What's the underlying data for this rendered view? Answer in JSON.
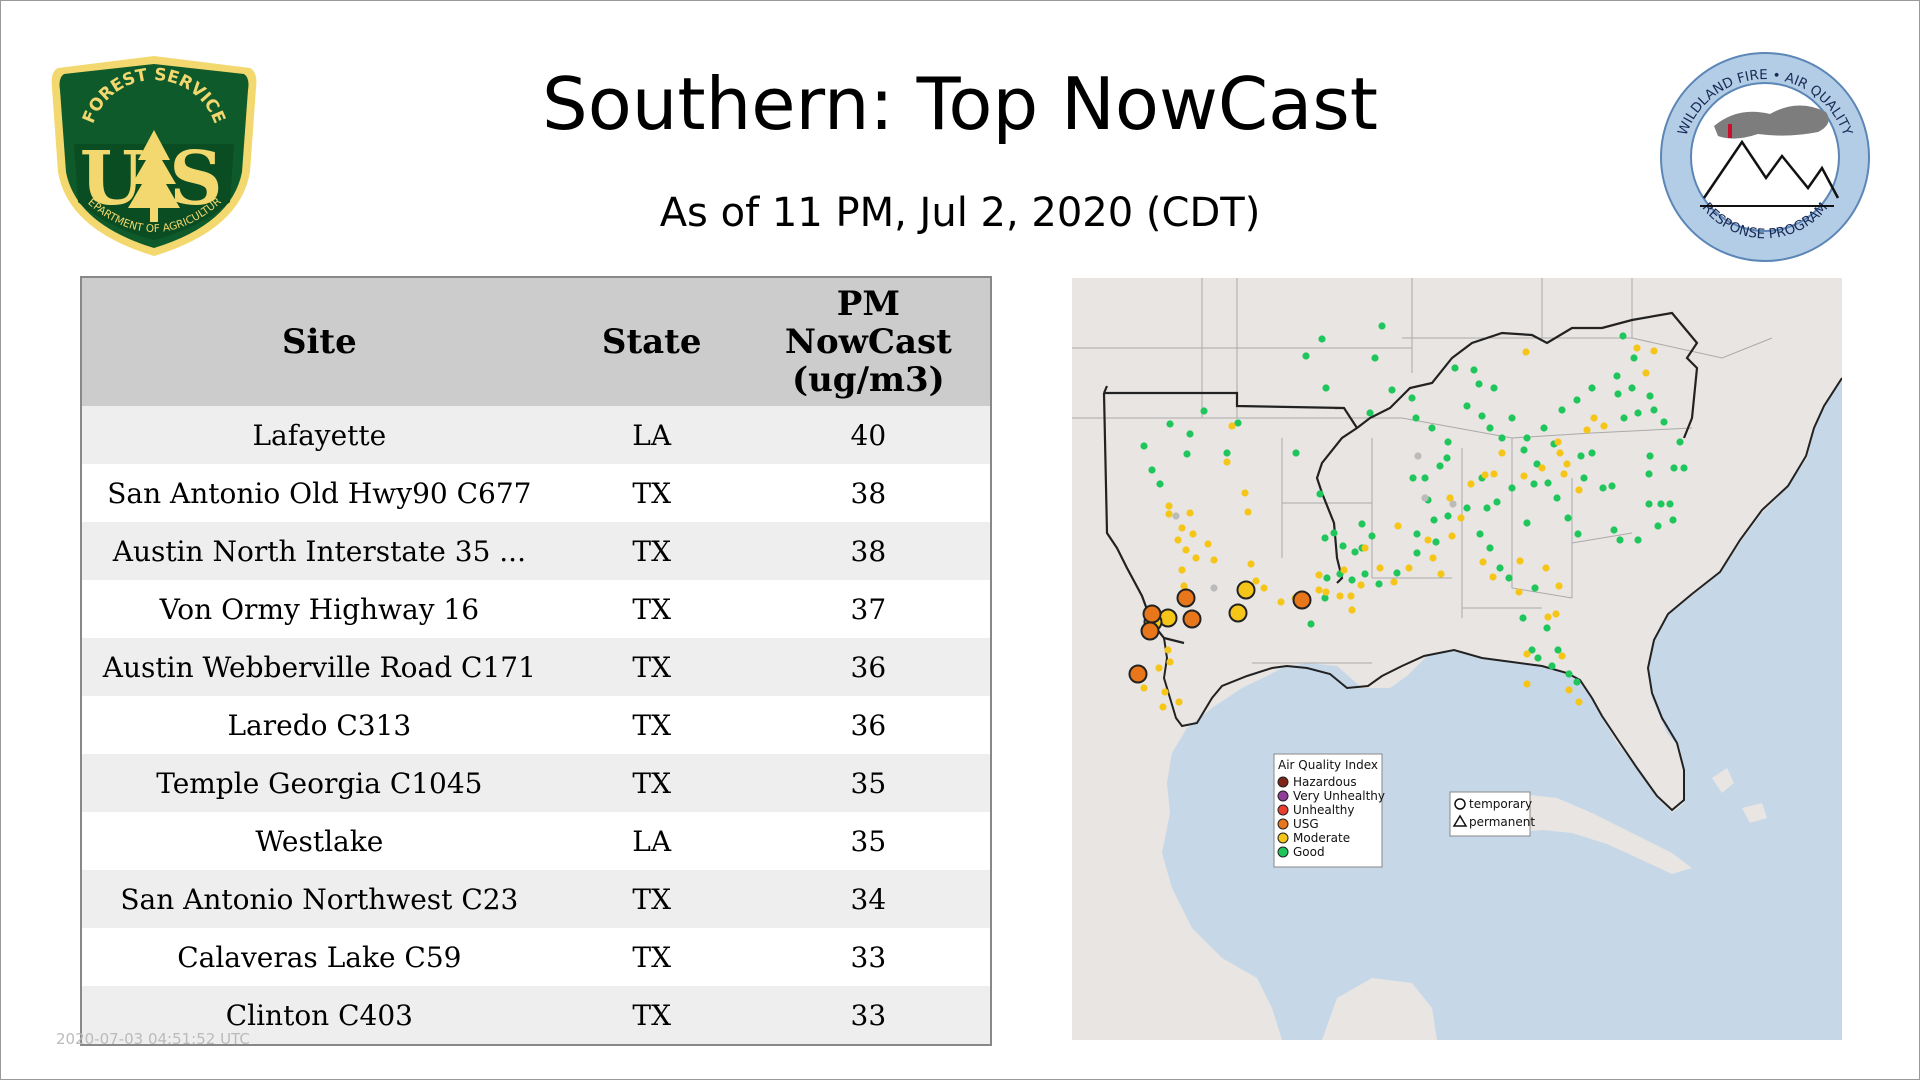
{
  "header": {
    "title": "Southern: Top NowCast",
    "subtitle": "As of 11 PM, Jul  2, 2020 (CDT)"
  },
  "logos": {
    "left": {
      "icon": "forest-service-shield-icon",
      "top_text": "FOREST SERVICE",
      "initials_left": "U",
      "initials_right": "S",
      "bottom_text": "DEPARTMENT OF AGRICULTURE"
    },
    "right": {
      "icon": "wildland-fire-air-quality-icon",
      "top_text": "WILDLAND FIRE • AIR QUALITY",
      "bottom_text": "RESPONSE PROGRAM"
    }
  },
  "table": {
    "headers": {
      "site": "Site",
      "state": "State",
      "value_lines": [
        "PM",
        "NowCast",
        "(ug/m3)"
      ]
    },
    "rows": [
      {
        "site": "Lafayette",
        "state": "LA",
        "value": "40"
      },
      {
        "site": "San Antonio Old Hwy90 C677",
        "state": "TX",
        "value": "38"
      },
      {
        "site": "Austin North Interstate 35 ...",
        "state": "TX",
        "value": "38"
      },
      {
        "site": "Von Ormy Highway 16",
        "state": "TX",
        "value": "37"
      },
      {
        "site": "Austin Webberville Road C171",
        "state": "TX",
        "value": "36"
      },
      {
        "site": "Laredo C313",
        "state": "TX",
        "value": "36"
      },
      {
        "site": "Temple Georgia C1045",
        "state": "TX",
        "value": "35"
      },
      {
        "site": "Westlake",
        "state": "LA",
        "value": "35"
      },
      {
        "site": "San Antonio Northwest C23",
        "state": "TX",
        "value": "34"
      },
      {
        "site": "Calaveras Lake C59",
        "state": "TX",
        "value": "33"
      },
      {
        "site": "Clinton C403",
        "state": "TX",
        "value": "33"
      }
    ]
  },
  "footer": {
    "timestamp": "2020-07-03 04:51:52 UTC"
  },
  "map": {
    "colors": {
      "water": "#c6d7e8",
      "land": "#e9e5e2",
      "border": "#222222",
      "state_lines": "#aaaaaa"
    },
    "legend_aqi": {
      "title": "Air Quality Index",
      "items": [
        {
          "label": "Hazardous",
          "color": "#7e2418"
        },
        {
          "label": "Very Unhealthy",
          "color": "#8f3f97"
        },
        {
          "label": "Unhealthy",
          "color": "#e8402e"
        },
        {
          "label": "USG",
          "color": "#e8761b"
        },
        {
          "label": "Moderate",
          "color": "#f5c518"
        },
        {
          "label": "Good",
          "color": "#1fc65b"
        }
      ]
    },
    "legend_shape": {
      "items": [
        {
          "label": "temporary",
          "shape": "circle"
        },
        {
          "label": "permanent",
          "shape": "triangle"
        }
      ]
    }
  }
}
